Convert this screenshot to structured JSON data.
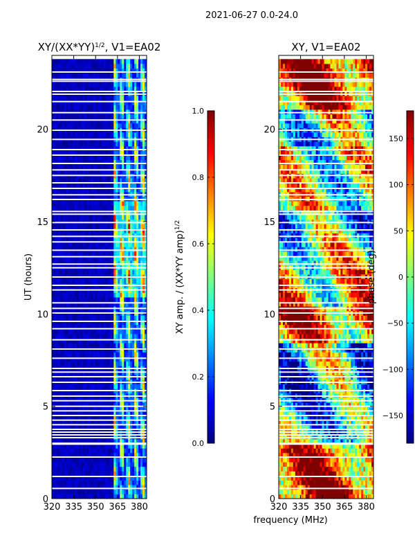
{
  "suptitle": "2021-06-27 0.0-24.0",
  "colors": {
    "jet": [
      "#00007f",
      "#0000ff",
      "#007fff",
      "#00ffff",
      "#7fff7f",
      "#ffff00",
      "#ff7f00",
      "#ff0000",
      "#7f0000"
    ],
    "gap": "#ffffff",
    "frame": "#000000"
  },
  "chart_data": [
    {
      "type": "heatmap",
      "title": "XY/(XX*YY)",
      "title_exp": "1/2",
      "title_suffix": ", V1=EA02",
      "xlabel": "",
      "ylabel": "UT (hours)",
      "xlim": [
        320,
        385
      ],
      "ylim": [
        0,
        24
      ],
      "xticks": [
        "320",
        "335",
        "350",
        "365",
        "380"
      ],
      "xtick_values": [
        320,
        335,
        350,
        365,
        380
      ],
      "yticks": [
        "0",
        "5",
        "10",
        "15",
        "20"
      ],
      "ytick_values": [
        0,
        5,
        10,
        15,
        20
      ],
      "data_end_hours": 23.8,
      "colorbar": {
        "label": "XY amp. / (XX*YY amp)",
        "label_exp": "1/2",
        "range": [
          0.0,
          1.0
        ],
        "ticks": [
          "0.0",
          "0.2",
          "0.4",
          "0.6",
          "0.8",
          "1.0"
        ],
        "tick_values": [
          0.0,
          0.2,
          0.4,
          0.6,
          0.8,
          1.0
        ]
      }
    },
    {
      "type": "heatmap",
      "title": "XY, V1=EA02",
      "xlabel": "frequency (MHz)",
      "ylabel": "",
      "xlim": [
        320,
        385
      ],
      "ylim": [
        0,
        24
      ],
      "xticks": [
        "320",
        "335",
        "350",
        "365",
        "380"
      ],
      "xtick_values": [
        320,
        335,
        350,
        365,
        380
      ],
      "yticks": [
        "0",
        "5",
        "10",
        "15",
        "20"
      ],
      "ytick_values": [
        0,
        5,
        10,
        15,
        20
      ],
      "data_end_hours": 23.8,
      "colorbar": {
        "label": "phase (deg)",
        "range": [
          -180,
          180
        ],
        "ticks": [
          "−150",
          "−100",
          "−50",
          "0",
          "50",
          "100",
          "150"
        ],
        "tick_values": [
          -150,
          -100,
          -50,
          0,
          50,
          100,
          150
        ]
      }
    }
  ],
  "gap_hours": [
    0.55,
    1.2,
    2.25,
    2.95,
    3.0,
    3.3,
    3.45,
    3.6,
    3.75,
    4.0,
    4.25,
    4.5,
    4.75,
    5.0,
    5.3,
    5.55,
    5.85,
    6.3,
    6.6,
    6.85,
    7.05,
    7.6,
    8.1,
    8.6,
    9.2,
    9.6,
    10.05,
    10.3,
    10.6,
    11.3,
    11.55,
    12.0,
    12.5,
    12.7,
    13.1,
    13.45,
    13.9,
    14.2,
    14.55,
    14.95,
    15.4,
    15.55,
    16.2,
    16.45,
    16.8,
    17.1,
    17.5,
    17.8,
    18.15,
    18.6,
    18.9,
    19.45,
    19.95,
    20.5,
    20.9,
    21.5,
    21.9,
    22.05,
    22.6,
    22.7,
    23.1
  ]
}
